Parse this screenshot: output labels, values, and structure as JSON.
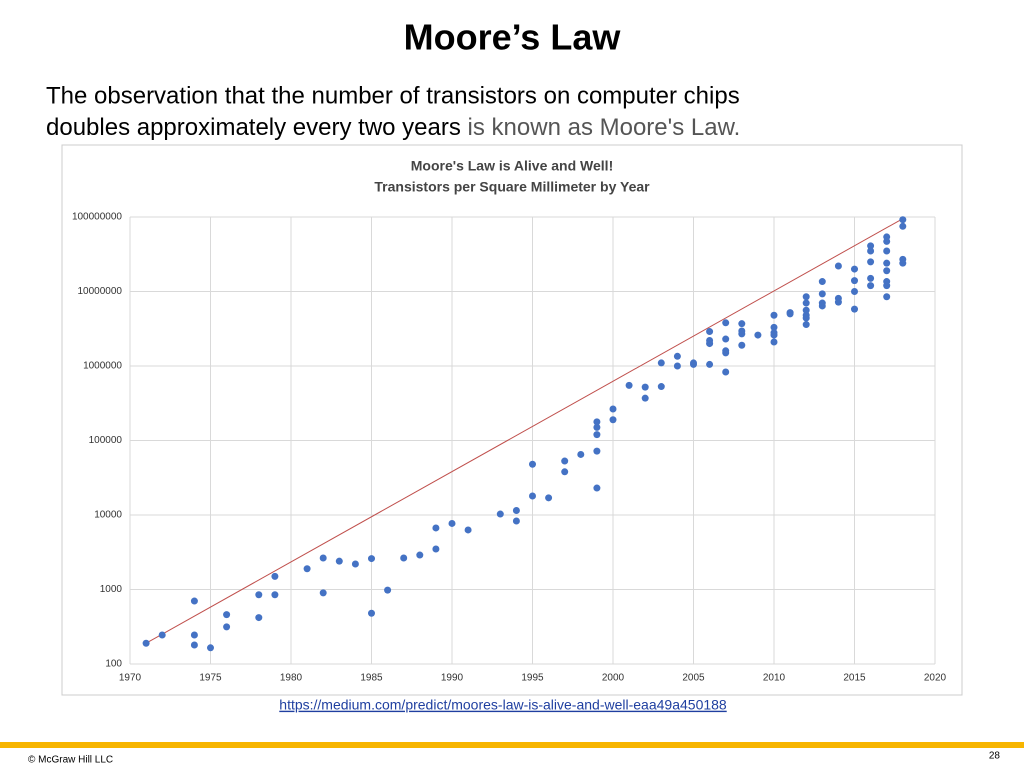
{
  "slide": {
    "title": "Moore’s Law",
    "body": [
      "The observation that the number of transistors on computer chips",
      "doubles approximately every two years",
      "is known as Moore's Law."
    ],
    "link": "https://medium.com/predict/moores-law-is-alive-and-well-eaa49a450188",
    "footer": "© McGraw Hill LLC",
    "page": "28"
  },
  "chart_data": {
    "type": "scatter",
    "title": "Moore's Law is Alive and Well!",
    "subtitle": "Transistors per Square Millimeter by Year",
    "series": [
      {
        "color": "#4472c4",
        "x": [
          1971,
          1972,
          1974,
          1974,
          1974,
          1975,
          1976,
          1976,
          1978,
          1978,
          1979,
          1979,
          1981,
          1982,
          1982,
          1983,
          1984,
          1985,
          1985,
          1986,
          1987,
          1988,
          1989,
          1989,
          1990,
          1991,
          1993,
          1994,
          1994,
          1995,
          1995,
          1996,
          1997,
          1997,
          1998,
          1999,
          1999,
          1999,
          1999,
          1999,
          2000,
          2000,
          2001,
          2002,
          2002,
          2003,
          2003,
          2004,
          2004,
          2005,
          2005,
          2006,
          2006,
          2006,
          2006,
          2007,
          2007,
          2007,
          2007,
          2007,
          2008,
          2008,
          2008,
          2008,
          2009,
          2010,
          2010,
          2010,
          2010,
          2010,
          2011,
          2011,
          2012,
          2012,
          2012,
          2012,
          2012,
          2012,
          2013,
          2013,
          2013,
          2013,
          2014,
          2014,
          2014,
          2015,
          2015,
          2015,
          2015,
          2016,
          2016,
          2016,
          2016,
          2016,
          2017,
          2017,
          2017,
          2017,
          2017,
          2017,
          2017,
          2017,
          2018,
          2018,
          2018,
          2018
        ],
        "values": [
          190,
          245,
          700,
          245,
          180,
          165,
          460,
          315,
          850,
          420,
          1500,
          850,
          1900,
          2650,
          900,
          2400,
          2200,
          2600,
          480,
          980,
          2650,
          2900,
          3500,
          6700,
          7700,
          6300,
          10300,
          11500,
          8300,
          48000,
          18000,
          17000,
          53000,
          38000,
          65000,
          178000,
          150000,
          120000,
          72000,
          23000,
          265000,
          190000,
          550000,
          520000,
          370000,
          530000,
          1100000,
          1350000,
          1000000,
          1100000,
          1050000,
          2900000,
          2200000,
          2000000,
          1050000,
          3800000,
          2300000,
          1600000,
          1500000,
          830000,
          3700000,
          2950000,
          2700000,
          1900000,
          2600000,
          4800000,
          3300000,
          2800000,
          2600000,
          2100000,
          5200000,
          5000000,
          8500000,
          7000000,
          5600000,
          4800000,
          4400000,
          3600000,
          13600000,
          9300000,
          7000000,
          6400000,
          8100000,
          7200000,
          22000000,
          20000000,
          14000000,
          10000000,
          5800000,
          41000000,
          35000000,
          25000000,
          15000000,
          12000000,
          54000000,
          47000000,
          35000000,
          24000000,
          19000000,
          13600000,
          12000000,
          8500000,
          92000000,
          75000000,
          27000000,
          24000000
        ]
      }
    ],
    "trend": {
      "color": "#c0504d",
      "x": [
        1971,
        2018
      ],
      "values": [
        190,
        95000000
      ]
    },
    "xlim": [
      1970,
      2020
    ],
    "xticks": [
      1970,
      1975,
      1980,
      1985,
      1990,
      1995,
      2000,
      2005,
      2010,
      2015,
      2020
    ],
    "ylim": [
      100,
      100000000
    ],
    "yticks": [
      100,
      1000,
      10000,
      100000,
      1000000,
      10000000,
      100000000
    ],
    "log_scale": true,
    "grid": true
  }
}
